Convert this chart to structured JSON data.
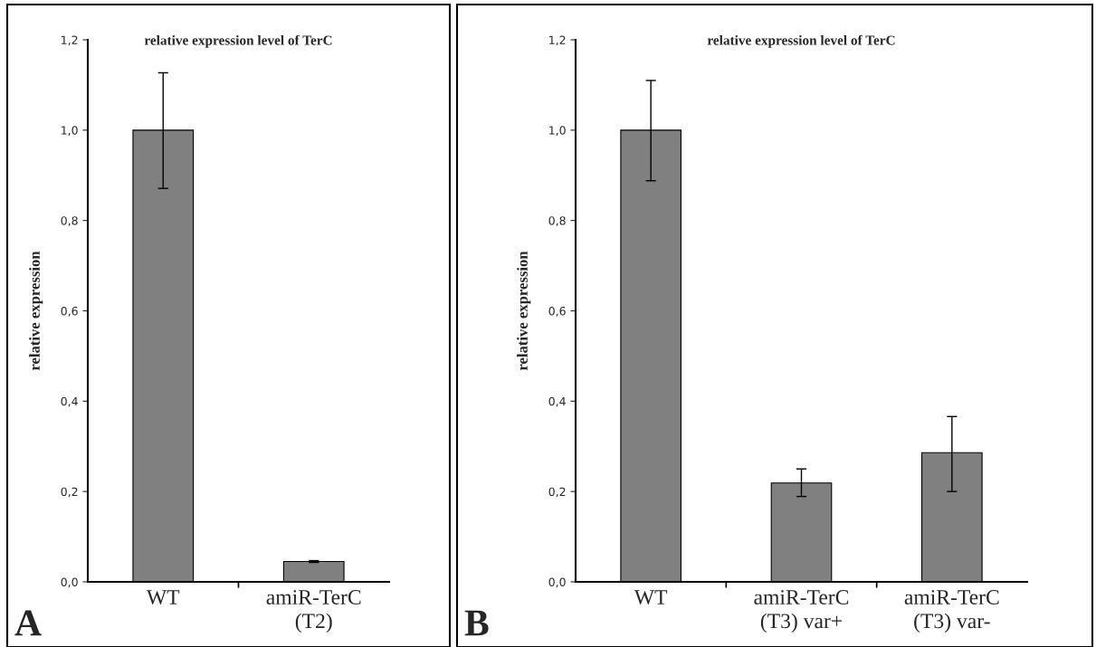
{
  "chart_data": [
    {
      "type": "bar",
      "title": "relative expression level of TerC",
      "ylabel": "relative expression",
      "categories": [
        "WT",
        "amiR-TerC\n(T2)"
      ],
      "values": [
        1.0,
        0.045
      ],
      "errors": [
        [
          0.871,
          1.127
        ],
        [
          0.043,
          0.047
        ]
      ],
      "color": "#808080",
      "ylim": [
        0,
        1.2
      ],
      "yticks": [
        {
          "value": 0,
          "label": "0,0"
        },
        {
          "value": 0.2,
          "label": "0,2"
        },
        {
          "value": 0.4,
          "label": "0,4"
        },
        {
          "value": 0.6,
          "label": "0,6"
        },
        {
          "value": 0.8,
          "label": "0,8"
        },
        {
          "value": 1.0,
          "label": "1,0"
        },
        {
          "value": 1.2,
          "label": "1,2"
        }
      ],
      "grid": false,
      "annotations": [
        "A"
      ]
    },
    {
      "type": "bar",
      "title": "relative expression level of TerC",
      "ylabel": "relative expression",
      "categories": [
        "WT",
        "amiR-TerC\n(T3) var+",
        "amiR-TerC\n(T3) var-"
      ],
      "values": [
        1.0,
        0.219,
        0.286
      ],
      "errors": [
        [
          0.888,
          1.11
        ],
        [
          0.189,
          0.25
        ],
        [
          0.2,
          0.366
        ]
      ],
      "color": "#808080",
      "ylim": [
        0,
        1.2
      ],
      "yticks": [
        {
          "value": 0,
          "label": "0,0"
        },
        {
          "value": 0.2,
          "label": "0,2"
        },
        {
          "value": 0.4,
          "label": "0,4"
        },
        {
          "value": 0.6,
          "label": "0,6"
        },
        {
          "value": 0.8,
          "label": "0,8"
        },
        {
          "value": 1.0,
          "label": "1,0"
        },
        {
          "value": 1.2,
          "label": "1,2"
        }
      ],
      "grid": false,
      "annotations": [
        "B"
      ]
    }
  ]
}
